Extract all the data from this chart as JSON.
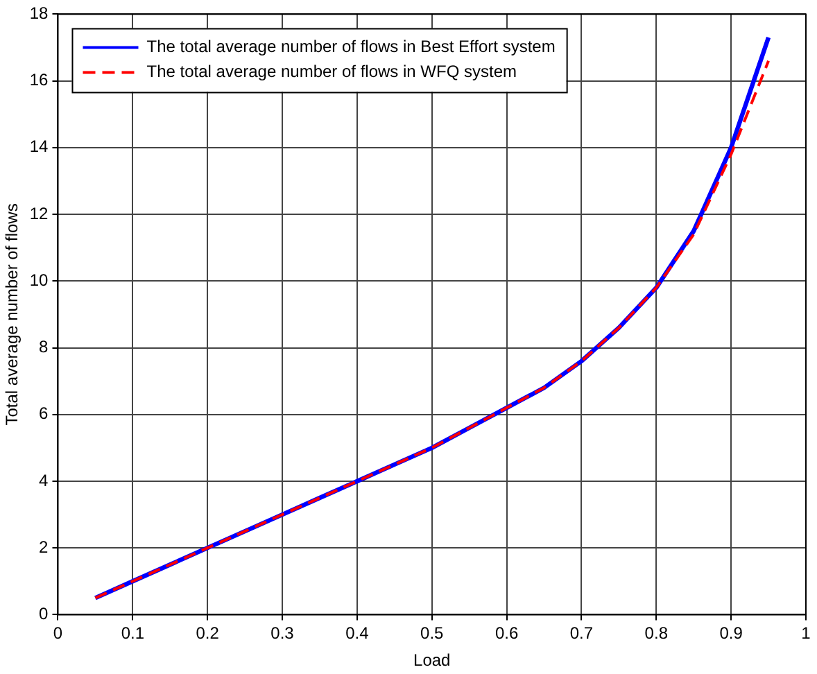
{
  "chart_data": {
    "type": "line",
    "xlabel": "Load",
    "ylabel": "Total average number of flows",
    "x": [
      0.05,
      0.1,
      0.15,
      0.2,
      0.25,
      0.3,
      0.35,
      0.4,
      0.45,
      0.5,
      0.55,
      0.6,
      0.65,
      0.7,
      0.75,
      0.8,
      0.85,
      0.9,
      0.95
    ],
    "series": [
      {
        "name": "The total average number of flows in Best Effort system",
        "color": "#0000ff",
        "line_style": "solid",
        "values": [
          0.5,
          1.0,
          1.5,
          2.0,
          2.5,
          3.0,
          3.5,
          4.0,
          4.5,
          5.0,
          5.6,
          6.2,
          6.8,
          7.6,
          8.6,
          9.8,
          11.5,
          14.0,
          17.3
        ]
      },
      {
        "name": "The total average number of flows in WFQ system",
        "color": "#ff0000",
        "line_style": "dashed",
        "values": [
          0.5,
          1.0,
          1.5,
          2.0,
          2.5,
          3.0,
          3.5,
          4.0,
          4.5,
          5.0,
          5.6,
          6.2,
          6.8,
          7.6,
          8.6,
          9.8,
          11.4,
          13.8,
          16.6
        ]
      }
    ],
    "xlim": [
      0,
      1
    ],
    "xticks": [
      0,
      0.1,
      0.2,
      0.3,
      0.4,
      0.5,
      0.6,
      0.7,
      0.8,
      0.9,
      1
    ],
    "ylim": [
      0,
      18
    ],
    "yticks": [
      0,
      2,
      4,
      6,
      8,
      10,
      12,
      14,
      16,
      18
    ],
    "grid": true,
    "legend": "top left",
    "marker": "none"
  }
}
